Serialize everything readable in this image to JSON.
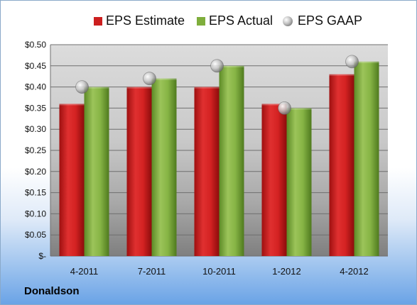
{
  "company": "Donaldson",
  "chart_data": {
    "type": "bar",
    "title": "",
    "xlabel": "",
    "ylabel": "",
    "categories": [
      "4-2011",
      "7-2011",
      "10-2011",
      "1-2012",
      "4-2012"
    ],
    "series": [
      {
        "name": "EPS Estimate",
        "kind": "bar",
        "color": "#cc1f1f",
        "values": [
          0.36,
          0.4,
          0.4,
          0.36,
          0.43
        ]
      },
      {
        "name": "EPS Actual",
        "kind": "bar",
        "color": "#7fae3c",
        "values": [
          0.4,
          0.42,
          0.45,
          0.35,
          0.46
        ]
      },
      {
        "name": "EPS GAAP",
        "kind": "marker",
        "color": "#c8c8c8",
        "values": [
          0.4,
          0.42,
          0.45,
          0.35,
          0.46
        ]
      }
    ],
    "ylim": [
      0,
      0.5
    ],
    "yticks": [
      0,
      0.05,
      0.1,
      0.15,
      0.2,
      0.25,
      0.3,
      0.35,
      0.4,
      0.45,
      0.5
    ],
    "ytick_labels": [
      "$-",
      "$0.05",
      "$0.10",
      "$0.15",
      "$0.20",
      "$0.25",
      "$0.30",
      "$0.35",
      "$0.40",
      "$0.45",
      "$0.50"
    ],
    "grid": true,
    "legend_position": "top"
  }
}
